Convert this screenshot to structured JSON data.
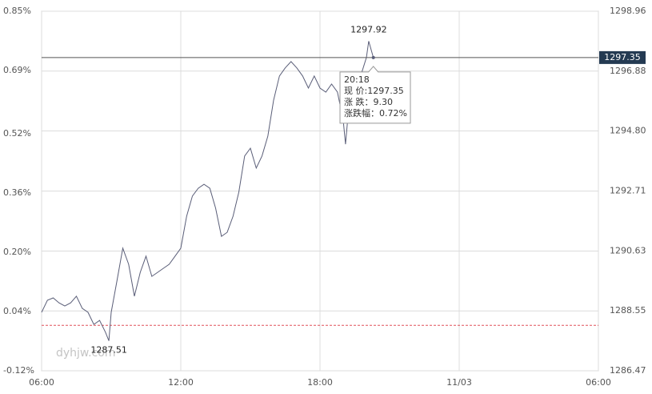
{
  "chart_data": {
    "type": "line",
    "x": [
      0,
      0.25,
      0.5,
      0.75,
      1.0,
      1.25,
      1.5,
      1.75,
      2.0,
      2.25,
      2.5,
      2.75,
      2.9,
      3.0,
      3.25,
      3.5,
      3.75,
      4.0,
      4.25,
      4.5,
      4.75,
      5.0,
      5.25,
      5.5,
      5.75,
      6.0,
      6.25,
      6.5,
      6.75,
      7.0,
      7.25,
      7.5,
      7.75,
      8.0,
      8.25,
      8.5,
      8.75,
      9.0,
      9.25,
      9.5,
      9.75,
      10.0,
      10.25,
      10.5,
      10.75,
      11.0,
      11.25,
      11.5,
      11.75,
      12.0,
      12.25,
      12.5,
      12.75,
      13.0,
      13.1,
      13.25,
      13.5,
      13.75,
      14.0,
      14.1,
      14.3
    ],
    "values": [
      1288.5,
      1288.92,
      1289.0,
      1288.83,
      1288.72,
      1288.83,
      1289.06,
      1288.64,
      1288.5,
      1288.08,
      1288.22,
      1287.81,
      1287.51,
      1288.5,
      1289.61,
      1290.73,
      1290.17,
      1289.06,
      1289.89,
      1290.45,
      1289.75,
      1289.89,
      1290.03,
      1290.17,
      1290.45,
      1290.73,
      1291.84,
      1292.54,
      1292.81,
      1292.95,
      1292.81,
      1292.12,
      1291.14,
      1291.28,
      1291.84,
      1292.67,
      1293.93,
      1294.2,
      1293.51,
      1293.93,
      1294.62,
      1295.87,
      1296.71,
      1296.99,
      1297.21,
      1296.99,
      1296.71,
      1296.29,
      1296.71,
      1296.29,
      1296.15,
      1296.43,
      1296.15,
      1295.18,
      1294.34,
      1295.73,
      1296.57,
      1296.71,
      1297.35,
      1297.92,
      1297.35
    ],
    "color": "#5a5e78",
    "xlim": [
      0,
      24
    ],
    "xticks": [
      {
        "value": 0,
        "label": "06:00"
      },
      {
        "value": 6,
        "label": "12:00"
      },
      {
        "value": 12,
        "label": "18:00"
      },
      {
        "value": 18,
        "label": "11/03"
      },
      {
        "value": 24,
        "label": "06:00"
      }
    ],
    "ylim": [
      1286.47,
      1298.96
    ],
    "yticks": [
      {
        "value": 1286.47,
        "label": "1286.47"
      },
      {
        "value": 1288.55,
        "label": "1288.55"
      },
      {
        "value": 1290.63,
        "label": "1290.63"
      },
      {
        "value": 1292.71,
        "label": "1292.71"
      },
      {
        "value": 1294.8,
        "label": "1294.80"
      },
      {
        "value": 1296.88,
        "label": "1296.88"
      },
      {
        "value": 1298.96,
        "label": "1298.96"
      }
    ],
    "y2lim": [
      -0.12,
      0.85
    ],
    "y2ticks": [
      {
        "value": -0.12,
        "label": "-0.12%"
      },
      {
        "value": 0.04,
        "label": "0.04%"
      },
      {
        "value": 0.2,
        "label": "0.20%"
      },
      {
        "value": 0.36,
        "label": "0.36%"
      },
      {
        "value": 0.52,
        "label": "0.52%"
      },
      {
        "value": 0.69,
        "label": "0.69%"
      },
      {
        "value": 0.85,
        "label": "0.85%"
      }
    ],
    "grid": true,
    "baseline": 1288.05,
    "current": {
      "value": 1297.35,
      "label": "1297.35"
    },
    "high": {
      "x": 14.1,
      "value": 1297.92,
      "label": "1297.92"
    },
    "low": {
      "x": 2.9,
      "value": 1287.51,
      "label": "1287.51"
    },
    "tooltip": {
      "x": 14.3,
      "value": 1297.35,
      "lines": [
        "20:18",
        "现 价:1297.35",
        "涨 跌：9.30",
        "涨跌幅：0.72%"
      ]
    },
    "watermark": "dyhjw.com"
  }
}
